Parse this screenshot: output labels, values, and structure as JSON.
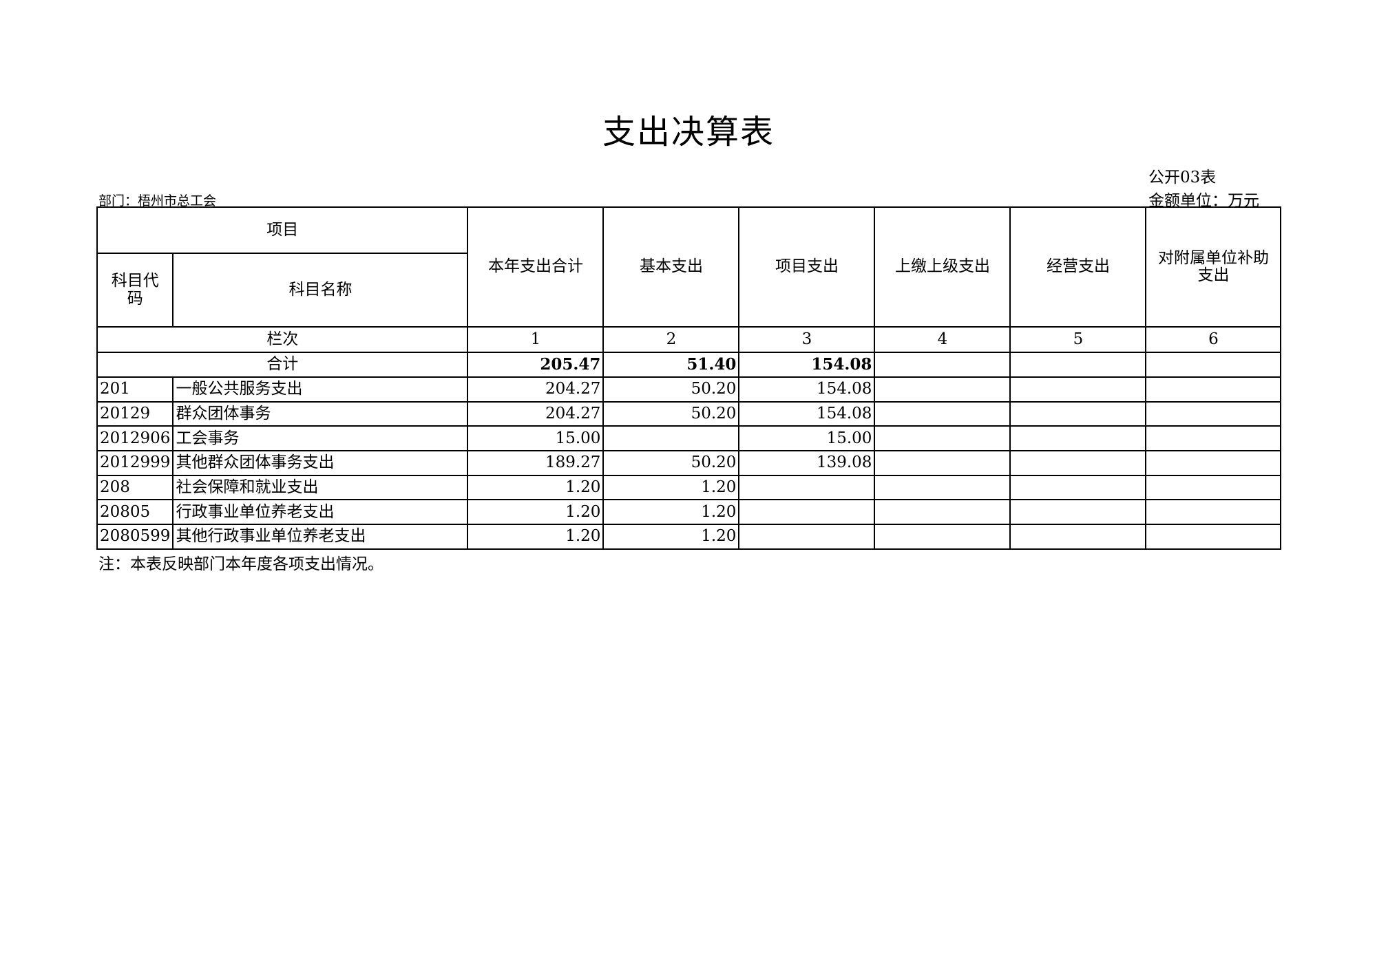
{
  "title": "支出决算表",
  "form_no": "公开03表",
  "unit": "金额单位：万元",
  "department": "部门：梧州市总工会",
  "header": {
    "item": "项目",
    "code": "科目代码",
    "name": "科目名称",
    "columns": [
      "本年支出合计",
      "基本支出",
      "项目支出",
      "上缴上级支出",
      "经营支出",
      "对附属单位补助支出"
    ],
    "seq_label": "栏次",
    "seq": [
      "1",
      "2",
      "3",
      "4",
      "5",
      "6"
    ]
  },
  "total": {
    "label": "合计",
    "values": [
      "205.47",
      "51.40",
      "154.08",
      "",
      "",
      ""
    ]
  },
  "rows": [
    {
      "code": "201",
      "name": "一般公共服务支出",
      "values": [
        "204.27",
        "50.20",
        "154.08",
        "",
        "",
        ""
      ]
    },
    {
      "code": "20129",
      "name": "群众团体事务",
      "values": [
        "204.27",
        "50.20",
        "154.08",
        "",
        "",
        ""
      ]
    },
    {
      "code": "2012906",
      "name": "工会事务",
      "values": [
        "15.00",
        "",
        "15.00",
        "",
        "",
        ""
      ]
    },
    {
      "code": "2012999",
      "name": "其他群众团体事务支出",
      "values": [
        "189.27",
        "50.20",
        "139.08",
        "",
        "",
        ""
      ]
    },
    {
      "code": "208",
      "name": "社会保障和就业支出",
      "values": [
        "1.20",
        "1.20",
        "",
        "",
        "",
        ""
      ]
    },
    {
      "code": "20805",
      "name": "行政事业单位养老支出",
      "values": [
        "1.20",
        "1.20",
        "",
        "",
        "",
        ""
      ]
    },
    {
      "code": "2080599",
      "name": "其他行政事业单位养老支出",
      "values": [
        "1.20",
        "1.20",
        "",
        "",
        "",
        ""
      ]
    }
  ],
  "note": "注：本表反映部门本年度各项支出情况。"
}
